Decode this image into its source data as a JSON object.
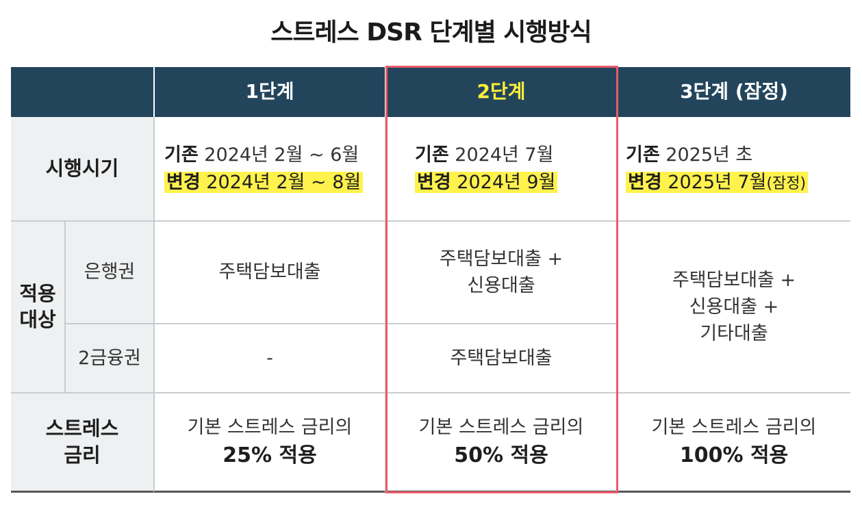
{
  "title": "스트레스 DSR 단계별 시행방식",
  "header": {
    "corner": "",
    "col1": "1단계",
    "col2": "2단계",
    "col3": "3단계 (잠정)"
  },
  "rows": {
    "period": {
      "label": "시행시기",
      "col1": {
        "orig_tag": "기존",
        "orig": "2024년 2월 ~ 6월",
        "chg_tag": "변경",
        "chg": "2024년 2월 ~ 8월"
      },
      "col2": {
        "orig_tag": "기존",
        "orig": "2024년 7월",
        "chg_tag": "변경",
        "chg": "2024년 9월"
      },
      "col3": {
        "orig_tag": "기존",
        "orig": "2025년 초",
        "chg_tag": "변경",
        "chg": "2025년 7월",
        "chg_suffix": "(잠정)"
      }
    },
    "target": {
      "label_line1": "적용",
      "label_line2": "대상",
      "bank": {
        "label": "은행권",
        "col1": "주택담보대출",
        "col2_line1": "주택담보대출 +",
        "col2_line2": "신용대출"
      },
      "second": {
        "label": "2금융권",
        "col1": "-",
        "col2": "주택담보대출"
      },
      "col3_line1": "주택담보대출 +",
      "col3_line2": "신용대출 +",
      "col3_line3": "기타대출"
    },
    "rate": {
      "label_line1": "스트레스",
      "label_line2": "금리",
      "col1_line1": "기본 스트레스 금리의",
      "col1_line2": "25% 적용",
      "col2_line1": "기본 스트레스 금리의",
      "col2_line2": "50% 적용",
      "col3_line1": "기본 스트레스 금리의",
      "col3_line2": "100% 적용"
    }
  },
  "colors": {
    "header_bg": "#22455c",
    "highlight": "#fff24d",
    "stage2_text": "#ffef3a",
    "box_border": "#ec5a6a",
    "label_bg": "#eef0f1"
  }
}
